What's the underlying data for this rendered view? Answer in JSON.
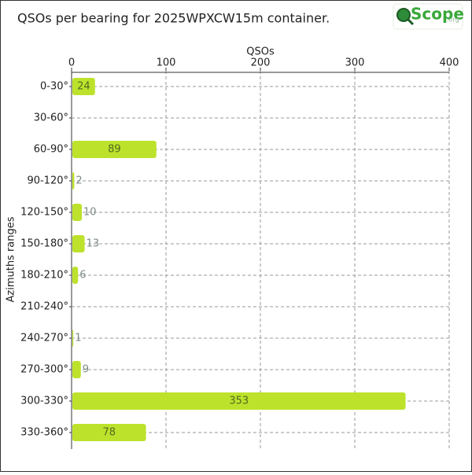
{
  "chart_data": {
    "type": "bar",
    "orientation": "horizontal",
    "title": "QSOs per bearing for 2025WPXCW15m container.",
    "logo": {
      "text": "Scope",
      "suffix": ".org"
    },
    "x_label": "QSOs",
    "y_label": "Azimuths ranges",
    "categories": [
      "0-30°",
      "30-60°",
      "60-90°",
      "90-120°",
      "120-150°",
      "150-180°",
      "180-210°",
      "210-240°",
      "240-270°",
      "270-300°",
      "300-330°",
      "330-360°"
    ],
    "values": [
      24,
      0,
      89,
      2,
      10,
      13,
      6,
      0,
      1,
      9,
      353,
      78
    ],
    "color": "#bde22c",
    "xlim": [
      0,
      400
    ],
    "xticks": [
      0,
      100,
      200,
      300,
      400
    ],
    "grid": true
  }
}
